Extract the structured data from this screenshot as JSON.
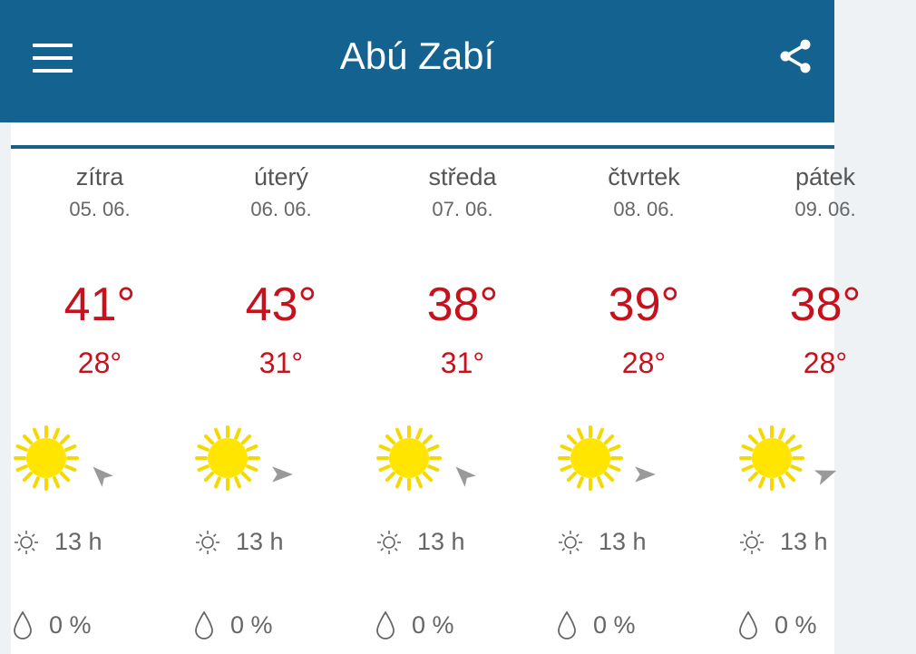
{
  "header": {
    "title": "Abú Zabí",
    "menu_icon": "hamburger-icon",
    "share_icon": "share-icon",
    "color": "#13628f"
  },
  "days": [
    {
      "day": "zítra",
      "date": "05. 06.",
      "high": "41°",
      "low": "28°",
      "icon": "sun-icon",
      "wind_direction_deg": 315,
      "daylight": "13 h",
      "precipitation": "0 %"
    },
    {
      "day": "úterý",
      "date": "06. 06.",
      "high": "43°",
      "low": "31°",
      "icon": "sun-icon",
      "wind_direction_deg": 90,
      "daylight": "13 h",
      "precipitation": "0 %"
    },
    {
      "day": "středa",
      "date": "07. 06.",
      "high": "38°",
      "low": "31°",
      "icon": "sun-icon",
      "wind_direction_deg": 315,
      "daylight": "13 h",
      "precipitation": "0 %"
    },
    {
      "day": "čtvrtek",
      "date": "08. 06.",
      "high": "39°",
      "low": "28°",
      "icon": "sun-icon",
      "wind_direction_deg": 90,
      "daylight": "13 h",
      "precipitation": "0 %"
    },
    {
      "day": "pátek",
      "date": "09. 06.",
      "high": "38°",
      "low": "28°",
      "icon": "sun-icon",
      "wind_direction_deg": 70,
      "daylight": "13 h",
      "precipitation": "0 %"
    }
  ],
  "colors": {
    "temperature": "#c5121c",
    "sun": "#ffe000"
  }
}
